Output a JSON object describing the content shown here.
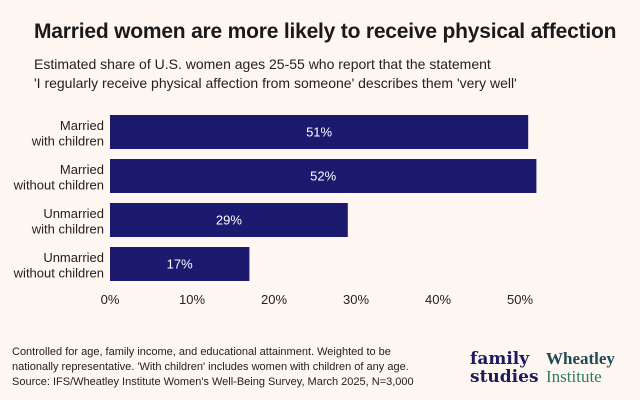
{
  "header": {
    "title": "Married women are more likely to receive physical affection",
    "subtitle_lines": [
      "Estimated share of U.S. women ages 25-55 who report that the statement",
      "'I regularly receive physical affection from someone' describes them 'very well'"
    ]
  },
  "chart_data": {
    "type": "bar",
    "orientation": "horizontal",
    "categories": [
      [
        "Married",
        "with children"
      ],
      [
        "Married",
        "without children"
      ],
      [
        "Unmarried",
        "with children"
      ],
      [
        "Unmarried",
        "without children"
      ]
    ],
    "values": [
      51,
      52,
      29,
      17
    ],
    "value_labels": [
      "51%",
      "52%",
      "29%",
      "17%"
    ],
    "xlim": [
      0,
      52
    ],
    "xticks": [
      0,
      10,
      20,
      30,
      40,
      50
    ],
    "xtick_labels": [
      "0%",
      "10%",
      "20%",
      "30%",
      "40%",
      "50%"
    ],
    "bar_color": "#1c1a6e",
    "label_color": "#ffffff",
    "grid": false,
    "legend": "none"
  },
  "footer": {
    "note_lines": [
      "Controlled for age, family income, and educational attainment. Weighted to be",
      "nationally representative. 'With children' includes women with children of any age.",
      "Source: IFS/Wheatley Institute Women's Well-Being Survey, March 2025, N=3,000"
    ]
  },
  "logos": {
    "family_studies": [
      "family",
      "studies"
    ],
    "wheatley_institute": [
      "Wheatley",
      "Institute"
    ]
  }
}
